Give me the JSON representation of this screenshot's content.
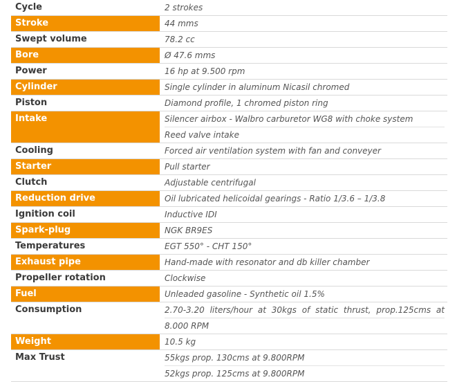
{
  "specs": [
    {
      "label": "Cycle",
      "highlight": false,
      "lines": [
        "2 strokes"
      ]
    },
    {
      "label": "Stroke",
      "highlight": true,
      "lines": [
        "44 mms"
      ]
    },
    {
      "label": "Swept volume",
      "highlight": false,
      "lines": [
        "78.2 cc"
      ]
    },
    {
      "label": "Bore",
      "highlight": true,
      "lines": [
        "Ø 47.6 mms"
      ]
    },
    {
      "label": "Power",
      "highlight": false,
      "lines": [
        "16 hp at 9.500 rpm"
      ]
    },
    {
      "label": "Cylinder",
      "highlight": true,
      "lines": [
        "Single cylinder in aluminum Nicasil chromed"
      ]
    },
    {
      "label": "Piston",
      "highlight": false,
      "lines": [
        "Diamond profile, 1 chromed piston ring"
      ]
    },
    {
      "label": "Intake",
      "highlight": true,
      "lines": [
        "Silencer airbox - Walbro carburetor WG8 with choke system",
        "Reed valve intake"
      ]
    },
    {
      "label": "Cooling",
      "highlight": false,
      "lines": [
        "Forced air ventilation system with fan and conveyer"
      ]
    },
    {
      "label": "Starter",
      "highlight": true,
      "lines": [
        "Pull starter"
      ]
    },
    {
      "label": "Clutch",
      "highlight": false,
      "lines": [
        "Adjustable centrifugal"
      ]
    },
    {
      "label": "Reduction drive",
      "highlight": true,
      "lines": [
        "Oil lubricated helicoidal gearings - Ratio 1/3.6 – 1/3.8"
      ]
    },
    {
      "label": "Ignition coil",
      "highlight": false,
      "lines": [
        "Inductive IDI"
      ]
    },
    {
      "label": "Spark-plug",
      "highlight": true,
      "lines": [
        "NGK BR9ES"
      ]
    },
    {
      "label": "Temperatures",
      "highlight": false,
      "lines": [
        "EGT 550° - CHT 150°"
      ]
    },
    {
      "label": "Exhaust pipe",
      "highlight": true,
      "lines": [
        "Hand-made with resonator and db killer chamber"
      ]
    },
    {
      "label": "Propeller rotation",
      "highlight": false,
      "lines": [
        "Clockwise"
      ]
    },
    {
      "label": "Fuel",
      "highlight": true,
      "lines": [
        "Unleaded gasoline - Synthetic oil 1.5%"
      ]
    },
    {
      "label": "Consumption",
      "highlight": false,
      "lines": [
        "2.70-3.20 liters/hour at 30kgs of static thrust, prop.125cms at",
        "8.000 RPM"
      ],
      "justify_first": true
    },
    {
      "label": "Weight",
      "highlight": true,
      "lines": [
        "10.5 kg"
      ]
    },
    {
      "label": "Max Trust",
      "highlight": false,
      "lines": [
        "55kgs prop. 130cms at 9.800RPM",
        "52kgs prop. 125cms at 9.800RPM"
      ]
    }
  ],
  "colors": {
    "highlight_bg": "#f39200",
    "highlight_text": "#ffffff",
    "label_text": "#3a3a3a",
    "value_text": "#555555",
    "row_border": "#d9d9d9"
  }
}
